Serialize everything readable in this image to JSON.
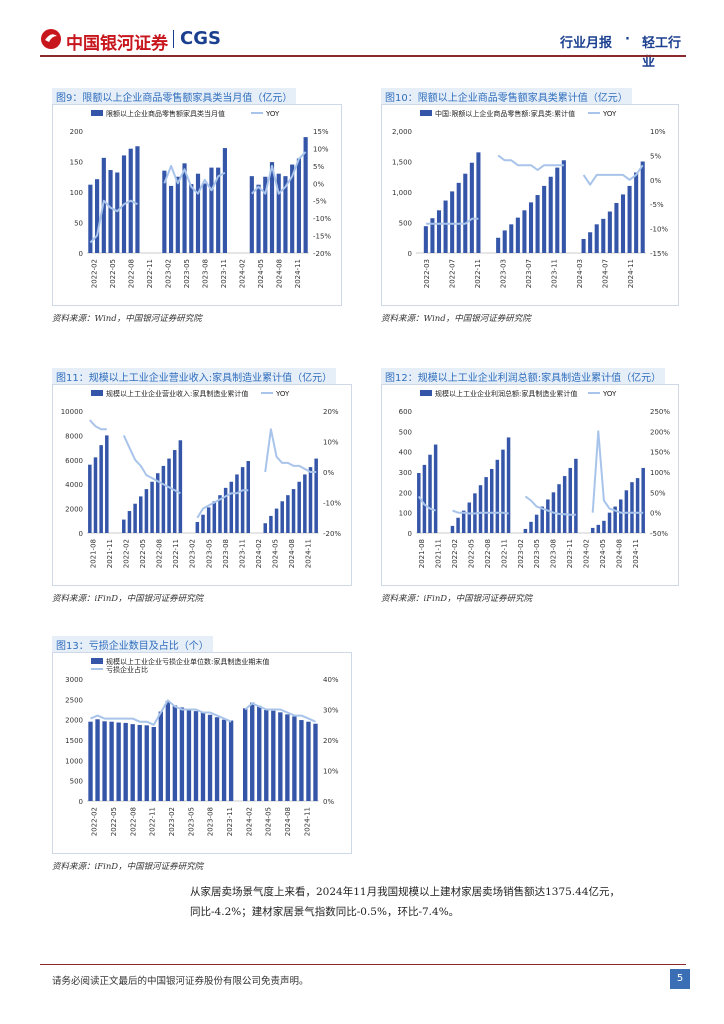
{
  "header": {
    "logo_cn": "中国银河证券",
    "logo_en": "CGS",
    "report_type": "行业月报",
    "separator": "·",
    "industry": "轻工行业"
  },
  "charts": [
    {
      "id": "fig9",
      "title": "图9：限额以上企业商品零售额家具类当月值（亿元）",
      "source": "资料来源：Wind，中国银河证券研究院",
      "chart_data": {
        "type": "bar+line",
        "series": [
          {
            "name": "限额以上企业商品零售额家具类当月值",
            "axis": "left",
            "values": [
              112,
              121,
              156,
              136,
              132,
              160,
              171,
              175,
              null,
              null,
              null,
              135,
              110,
              125,
              147,
              113,
              130,
              114,
              140,
              140,
              172,
              null,
              null,
              null,
              126,
              112,
              125,
              149,
              130,
              126,
              145,
              155,
              190
            ]
          },
          {
            "name": "YOY",
            "axis": "right",
            "values": [
              -17,
              -15,
              -5,
              -7,
              -8,
              -6,
              -5,
              -6,
              null,
              null,
              null,
              0,
              5,
              0,
              4,
              -1,
              -3,
              1,
              -2,
              2,
              3,
              null,
              null,
              null,
              -3,
              -1,
              -3,
              5,
              -3,
              -1,
              2,
              7,
              9
            ]
          }
        ],
        "x_tick_labels": [
          "2022-02",
          "2022-05",
          "2022-08",
          "2022-11",
          "2023-02",
          "2023-05",
          "2023-08",
          "2023-11",
          "2024-02",
          "2024-05",
          "2024-08",
          "2024-11"
        ],
        "left_axis": {
          "ticks": [
            "200",
            "150",
            "100",
            "50",
            "0"
          ],
          "range": [
            0,
            200
          ]
        },
        "right_axis": {
          "ticks": [
            "15%",
            "10%",
            "5%",
            "0%",
            "-5%",
            "-10%",
            "-15%",
            "-20%"
          ],
          "range": [
            -20,
            15
          ]
        }
      }
    },
    {
      "id": "fig10",
      "title": "图10：限额以上企业商品零售额家具类累计值（亿元）",
      "source": "资料来源：Wind，中国银河证券研究院",
      "chart_data": {
        "type": "bar+line",
        "series": [
          {
            "name": "中国:限额以上企业商品零售额:家具类:累计值",
            "axis": "left",
            "values": [
              null,
              440,
              570,
              700,
              860,
              1010,
              1150,
              1300,
              1480,
              1650,
              null,
              null,
              250,
              370,
              470,
              580,
              700,
              830,
              950,
              1100,
              1250,
              1400,
              1520,
              null,
              null,
              230,
              340,
              470,
              560,
              680,
              820,
              960,
              1100,
              1320,
              1500
            ]
          },
          {
            "name": "YOY",
            "axis": "right",
            "values": [
              null,
              -9,
              -9,
              -9,
              -9,
              -9,
              -9,
              -9,
              -8,
              -8,
              null,
              null,
              5,
              4,
              4,
              3,
              3,
              3,
              2,
              3,
              3,
              3,
              3,
              null,
              null,
              1,
              -1,
              1,
              1,
              1,
              1,
              1,
              0,
              1,
              3
            ]
          }
        ],
        "x_tick_labels": [
          "2022-03",
          "2022-07",
          "2022-11",
          "2023-03",
          "2023-07",
          "2023-11",
          "2024-03",
          "2024-07",
          "2024-11"
        ],
        "left_axis": {
          "ticks": [
            "2,000",
            "1,500",
            "1,000",
            "500",
            "0"
          ],
          "range": [
            0,
            2000
          ]
        },
        "right_axis": {
          "ticks": [
            "10%",
            "5%",
            "0%",
            "-5%",
            "-10%",
            "-15%"
          ],
          "range": [
            -15,
            10
          ]
        }
      }
    },
    {
      "id": "fig11",
      "title": "图11：规模以上工业企业营业收入:家具制造业累计值（亿元）",
      "source": "资料来源：iFinD，中国银河证券研究院",
      "chart_data": {
        "type": "bar+line",
        "series": [
          {
            "name": "规模以上工业企业营业收入:家具制造业累计值",
            "axis": "left",
            "values": [
              5600,
              6200,
              7200,
              8000,
              null,
              null,
              1100,
              1800,
              2400,
              3000,
              3600,
              4200,
              4900,
              5500,
              6100,
              6800,
              7600,
              null,
              null,
              900,
              1500,
              2100,
              2600,
              3100,
              3700,
              4200,
              4800,
              5400,
              5900,
              null,
              null,
              800,
              1400,
              2000,
              2600,
              3100,
              3600,
              4200,
              4800,
              5400,
              6100
            ]
          },
          {
            "name": "YOY",
            "axis": "right",
            "values": [
              17,
              15,
              14,
              14,
              null,
              null,
              12,
              8,
              4,
              2,
              -1,
              -2,
              -3,
              -4,
              -5,
              -6,
              -7,
              null,
              null,
              -15,
              -12,
              -11,
              -10,
              -9,
              -8,
              -7,
              -7,
              -6,
              -6,
              null,
              null,
              0,
              14,
              5,
              3,
              3,
              2,
              2,
              1,
              0,
              0
            ]
          }
        ],
        "x_tick_labels": [
          "2021-08",
          "2021-11",
          "2022-02",
          "2022-05",
          "2022-08",
          "2022-11",
          "2023-02",
          "2023-05",
          "2023-08",
          "2023-11",
          "2024-02",
          "2024-05",
          "2024-08",
          "2024-11"
        ],
        "left_axis": {
          "ticks": [
            "10000",
            "8000",
            "6000",
            "4000",
            "2000",
            "0"
          ],
          "range": [
            0,
            10000
          ]
        },
        "right_axis": {
          "ticks": [
            "20%",
            "10%",
            "0%",
            "-10%",
            "-20%"
          ],
          "range": [
            -20,
            20
          ]
        }
      }
    },
    {
      "id": "fig12",
      "title": "图12：规模以上工业企业利润总额:家具制造业累计值（亿元）",
      "source": "资料来源：iFinD，中国银河证券研究院",
      "chart_data": {
        "type": "bar+line",
        "series": [
          {
            "name": "规模以上工业企业利润总额:家具制造业累计值",
            "axis": "left",
            "values": [
              295,
              335,
              385,
              435,
              null,
              null,
              35,
              75,
              110,
              150,
              195,
              235,
              275,
              315,
              360,
              410,
              470,
              null,
              null,
              20,
              55,
              90,
              130,
              165,
              200,
              240,
              280,
              320,
              365,
              null,
              null,
              25,
              40,
              60,
              100,
              130,
              165,
              210,
              250,
              270,
              320
            ]
          },
          {
            "name": "YOY",
            "axis": "right",
            "values": [
              40,
              20,
              10,
              5,
              null,
              null,
              5,
              0,
              0,
              -2,
              -2,
              0,
              0,
              0,
              0,
              0,
              -2,
              null,
              null,
              40,
              30,
              15,
              10,
              5,
              0,
              -3,
              -4,
              -5,
              -5,
              null,
              null,
              0,
              200,
              30,
              10,
              5,
              0,
              0,
              0,
              0,
              0
            ]
          }
        ],
        "x_tick_labels": [
          "2021-08",
          "2021-11",
          "2022-02",
          "2022-05",
          "2022-08",
          "2022-11",
          "2023-02",
          "2023-05",
          "2023-08",
          "2023-11",
          "2024-02",
          "2024-05",
          "2024-08",
          "2024-11"
        ],
        "left_axis": {
          "ticks": [
            "600",
            "500",
            "400",
            "300",
            "200",
            "100",
            "0"
          ],
          "range": [
            0,
            600
          ]
        },
        "right_axis": {
          "ticks": [
            "250%",
            "200%",
            "150%",
            "100%",
            "50%",
            "0%",
            "-50%"
          ],
          "range": [
            -50,
            250
          ]
        }
      }
    },
    {
      "id": "fig13",
      "title": "图13：亏损企业数目及占比（个）",
      "source": "资料来源：iFinD，中国银河证券研究院",
      "chart_data": {
        "type": "bar+line",
        "series": [
          {
            "name": "规模以上工业企业亏损企业单位数:家具制造业期末值",
            "axis": "left",
            "values": [
              1950,
              2010,
              1960,
              1950,
              1930,
              1920,
              1890,
              1870,
              1860,
              1820,
              2200,
              2460,
              2350,
              2300,
              2240,
              2210,
              2180,
              2120,
              2060,
              2000,
              1980,
              null,
              2280,
              2420,
              2340,
              2240,
              2220,
              2180,
              2130,
              2080,
              1990,
              1950,
              1900
            ]
          },
          {
            "name": "亏损企业占比",
            "axis": "right",
            "values": [
              27,
              28,
              27,
              27,
              27,
              27,
              27,
              26,
              26,
              25,
              29,
              33,
              31,
              30,
              30,
              30,
              29,
              29,
              28,
              27,
              26,
              null,
              30,
              32,
              31,
              30,
              30,
              30,
              29,
              28,
              28,
              27,
              26
            ]
          }
        ],
        "x_tick_labels": [
          "2022-02",
          "2022-05",
          "2022-08",
          "2022-11",
          "2023-02",
          "2023-05",
          "2023-08",
          "2023-11",
          "2024-02",
          "2024-05",
          "2024-08",
          "2024-11"
        ],
        "left_axis": {
          "ticks": [
            "3000",
            "2500",
            "2000",
            "1500",
            "1000",
            "500",
            "0"
          ],
          "range": [
            0,
            3000
          ]
        },
        "right_axis": {
          "ticks": [
            "40%",
            "30%",
            "20%",
            "10%",
            "0%"
          ],
          "range": [
            0,
            40
          ]
        }
      }
    }
  ],
  "body_text": {
    "line1": "从家居卖场景气度上来看，2024年11月我国规模以上建材家居卖场销售额达1375.44亿元，",
    "line2": "同比-4.2%；建材家居景气指数同比-0.5%，环比-7.4%。"
  },
  "footer": {
    "disclaimer": "请务必阅读正文最后的中国银河证券股份有限公司免责声明。",
    "page_number": "5"
  },
  "colors": {
    "bar": "#3556a8",
    "line": "#a9c4ea",
    "brand_red": "#c8161d",
    "brand_blue": "#1b3f8f"
  }
}
